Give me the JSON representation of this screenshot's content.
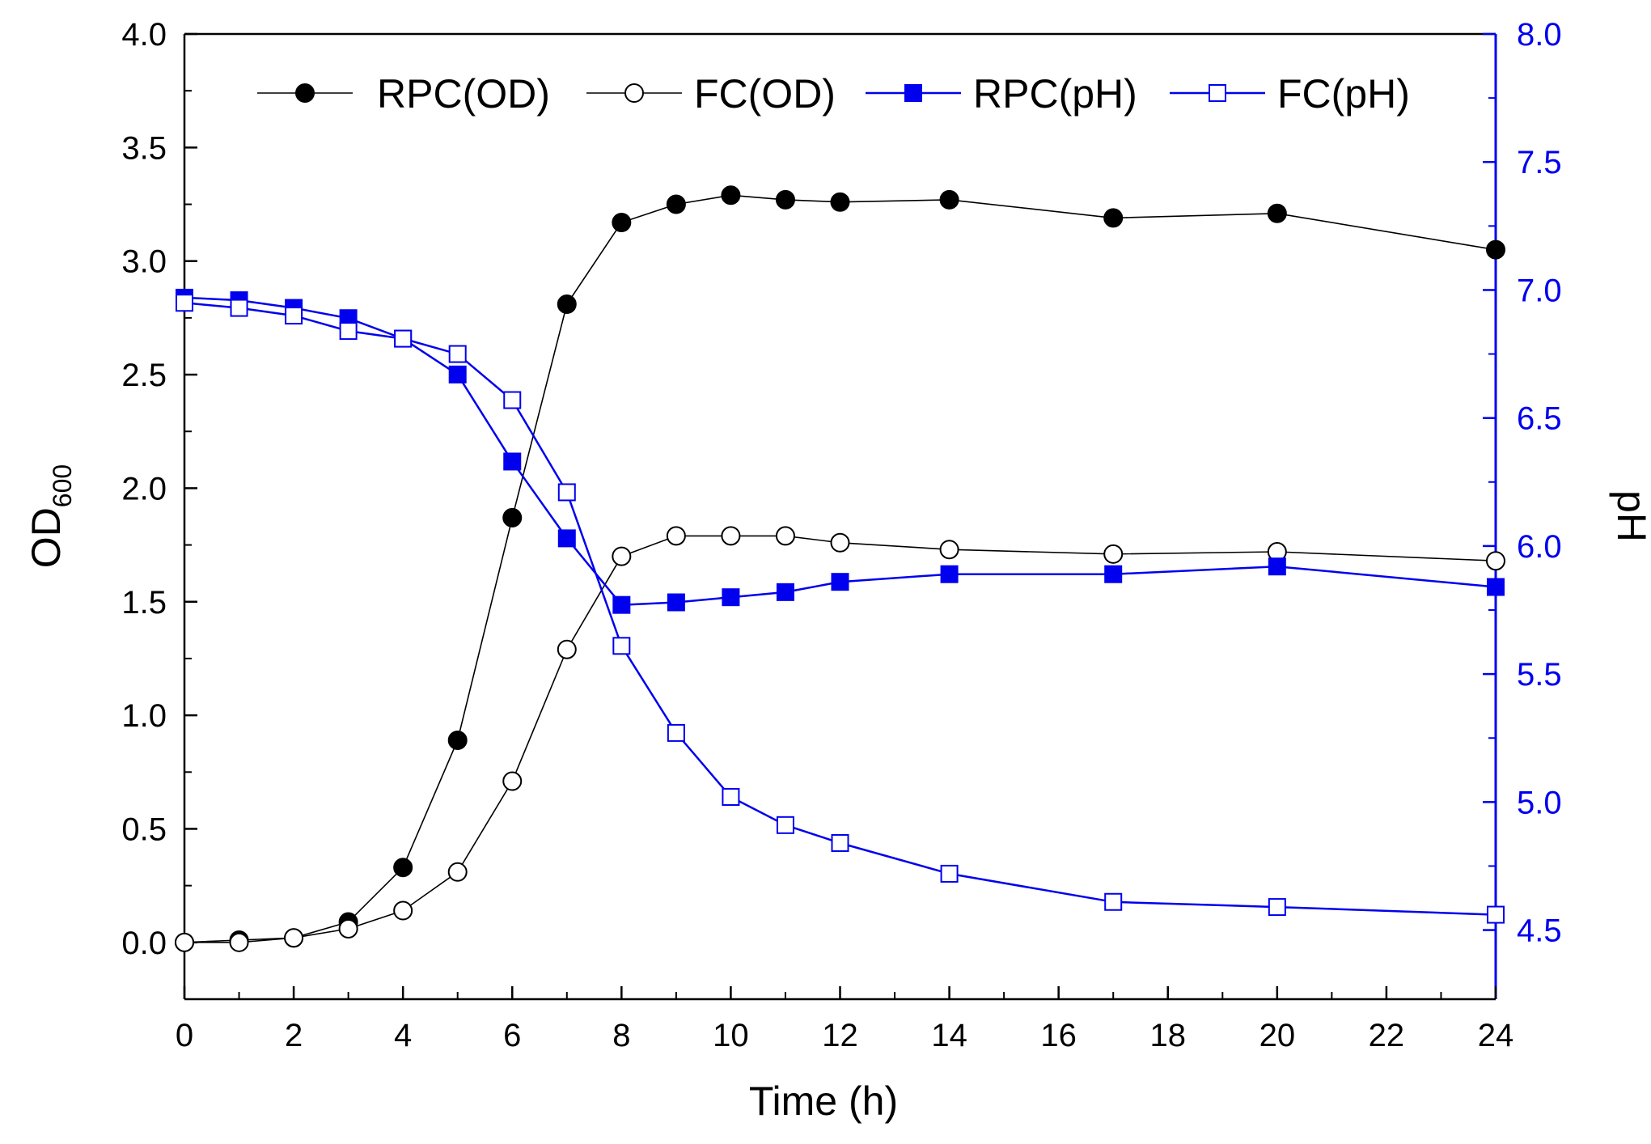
{
  "chart_data": {
    "type": "line",
    "x_axis": {
      "label": "Time (h)",
      "range": [
        0,
        24
      ],
      "ticks": [
        0,
        2,
        4,
        6,
        8,
        10,
        12,
        14,
        16,
        18,
        20,
        22,
        24
      ],
      "tick_labels": [
        "0",
        "2",
        "4",
        "6",
        "8",
        "10",
        "12",
        "14",
        "16",
        "18",
        "20",
        "22",
        "24"
      ]
    },
    "y_left": {
      "label_main": "OD",
      "label_sub": "600",
      "range": [
        -0.25,
        4.0
      ],
      "ticks": [
        0.0,
        0.5,
        1.0,
        1.5,
        2.0,
        2.5,
        3.0,
        3.5,
        4.0
      ],
      "tick_labels": [
        "0.0",
        "0.5",
        "1.0",
        "1.5",
        "2.0",
        "2.5",
        "3.0",
        "3.5",
        "4.0"
      ],
      "color": "#000000"
    },
    "y_right": {
      "label": "pH",
      "range": [
        4.23,
        8.0
      ],
      "ticks": [
        4.5,
        5.0,
        5.5,
        6.0,
        6.5,
        7.0,
        7.5,
        8.0
      ],
      "tick_labels": [
        "4.5",
        "5.0",
        "5.5",
        "6.0",
        "6.5",
        "7.0",
        "7.5",
        "8.0"
      ],
      "color": "#0000ee"
    },
    "legend": {
      "placement": "top",
      "entries": [
        "RPC(OD)",
        "FC(OD)",
        "RPC(pH)",
        "FC(pH)"
      ]
    },
    "series": [
      {
        "name": "RPC(OD)",
        "axis": "left",
        "color": "#000000",
        "marker": "circle-filled",
        "x": [
          0,
          1,
          2,
          3,
          4,
          5,
          6,
          7,
          8,
          9,
          10,
          11,
          12,
          14,
          17,
          20,
          24
        ],
        "y": [
          0.0,
          0.01,
          0.02,
          0.09,
          0.33,
          0.89,
          1.87,
          2.81,
          3.17,
          3.25,
          3.29,
          3.27,
          3.26,
          3.27,
          3.19,
          3.21,
          3.05
        ]
      },
      {
        "name": "FC(OD)",
        "axis": "left",
        "color": "#000000",
        "marker": "circle-open",
        "x": [
          0,
          1,
          2,
          3,
          4,
          5,
          6,
          7,
          8,
          9,
          10,
          11,
          12,
          14,
          17,
          20,
          24
        ],
        "y": [
          0.0,
          0.0,
          0.02,
          0.06,
          0.14,
          0.31,
          0.71,
          1.29,
          1.7,
          1.79,
          1.79,
          1.79,
          1.76,
          1.73,
          1.71,
          1.72,
          1.68
        ]
      },
      {
        "name": "RPC(pH)",
        "axis": "right",
        "color": "#0000ee",
        "marker": "square-filled",
        "x": [
          0,
          1,
          2,
          3,
          4,
          5,
          6,
          7,
          8,
          9,
          10,
          11,
          12,
          14,
          17,
          20,
          24
        ],
        "y": [
          6.97,
          6.96,
          6.93,
          6.89,
          6.81,
          6.67,
          6.33,
          6.03,
          5.77,
          5.78,
          5.8,
          5.82,
          5.86,
          5.89,
          5.89,
          5.92,
          5.84
        ]
      },
      {
        "name": "FC(pH)",
        "axis": "right",
        "color": "#0000ee",
        "marker": "square-open",
        "x": [
          0,
          1,
          2,
          3,
          4,
          5,
          6,
          7,
          8,
          9,
          10,
          11,
          12,
          14,
          17,
          20,
          24
        ],
        "y": [
          6.95,
          6.93,
          6.9,
          6.84,
          6.81,
          6.75,
          6.57,
          6.21,
          5.61,
          5.27,
          5.02,
          4.91,
          4.84,
          4.72,
          4.61,
          4.59,
          4.56
        ]
      }
    ]
  }
}
